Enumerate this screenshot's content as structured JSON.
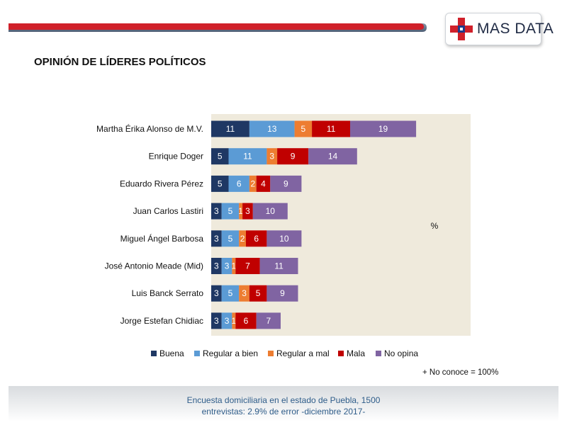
{
  "header": {
    "logo_text": "MAS DATA",
    "title": "OPINIÓN DE LÍDERES POLÍTICOS"
  },
  "colors": {
    "brand_red": "#d0202a",
    "brand_blue": "#1f3a8a",
    "header_gray": "#5a6b82"
  },
  "chart_data": {
    "type": "bar",
    "orientation": "horizontal",
    "stacked": true,
    "unit_label": "%",
    "categories": [
      "Martha Érika Alonso de M.V.",
      "Enrique Doger",
      "Eduardo Rivera Pérez",
      "Juan Carlos Lastiri",
      "Miguel Ángel Barbosa",
      "José Antonio Meade (Mid)",
      "Luis Banck Serrato",
      "Jorge Estefan Chidiac"
    ],
    "series": [
      {
        "name": "Buena",
        "color": "#1f3864",
        "values": [
          11,
          5,
          5,
          3,
          3,
          3,
          3,
          3
        ]
      },
      {
        "name": "Regular a bien",
        "color": "#5b9bd5",
        "values": [
          13,
          11,
          6,
          5,
          5,
          3,
          5,
          3
        ]
      },
      {
        "name": "Regular a mal",
        "color": "#ed7d31",
        "values": [
          5,
          3,
          2,
          1,
          2,
          1,
          3,
          1
        ]
      },
      {
        "name": "Mala",
        "color": "#c00000",
        "values": [
          11,
          9,
          4,
          3,
          6,
          7,
          5,
          6
        ]
      },
      {
        "name": "No opina",
        "color": "#8064a2",
        "values": [
          19,
          14,
          9,
          10,
          10,
          11,
          9,
          7
        ]
      }
    ],
    "xlim": [
      0,
      73
    ],
    "legend_position": "bottom",
    "grid": false,
    "plot_background": "#efeadc"
  },
  "notes": {
    "footnote": "+ No conoce = 100%",
    "source_line1": "Encuesta domiciliaria en el estado de Puebla, 1500",
    "source_line2": "entrevistas: 2.9% de error -diciembre 2017-"
  }
}
